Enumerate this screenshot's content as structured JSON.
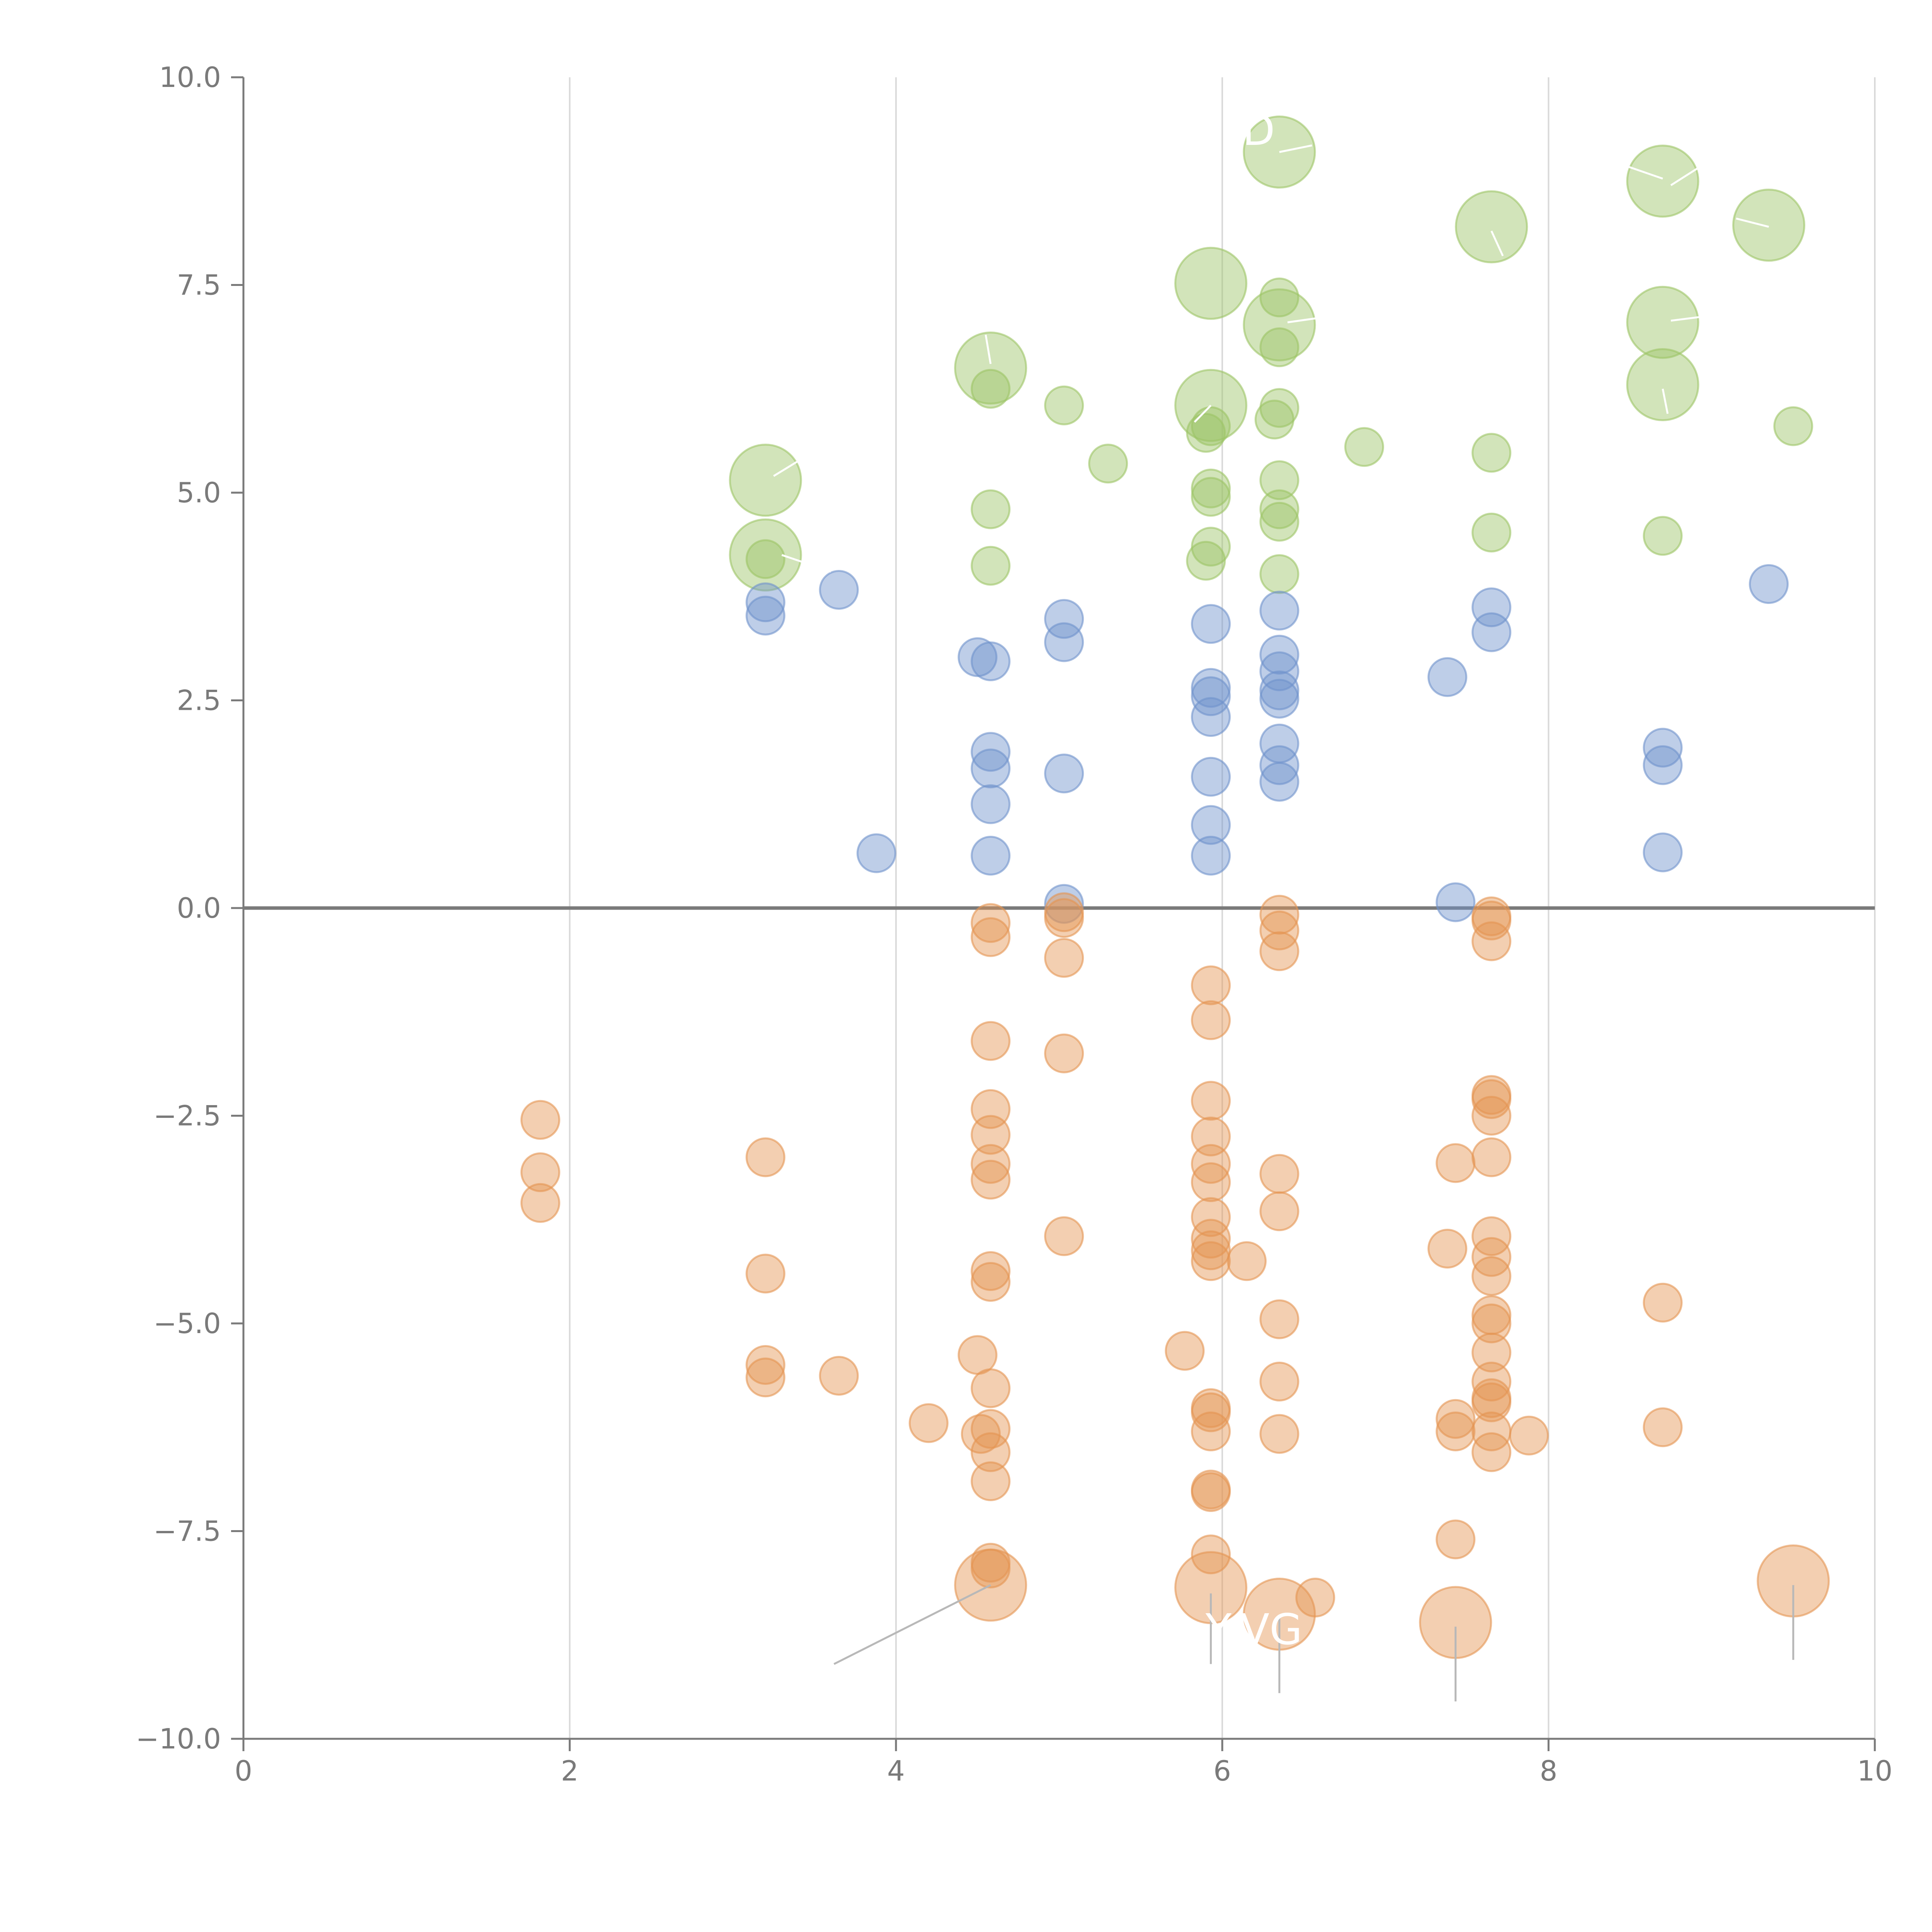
{
  "chart_data": {
    "type": "scatter",
    "title": "",
    "xlabel": "",
    "ylabel": "",
    "xlim": [
      0,
      10
    ],
    "ylim": [
      -10,
      10
    ],
    "x_ticks": [
      0,
      2,
      4,
      6,
      8,
      10
    ],
    "x_tick_labels": [
      "0",
      "2",
      "4",
      "6",
      "8",
      "10"
    ],
    "y_ticks": [
      10,
      7.5,
      5,
      2.5,
      0,
      -2.5,
      -5,
      -7.5,
      -10
    ],
    "y_tick_labels": [
      "10.0",
      "7.5",
      "5.0",
      "2.5",
      "0.0",
      "−2.5",
      "−5.0",
      "−7.5",
      "−10.0"
    ],
    "grid": "vertical",
    "zero_line": 0,
    "annotation_labels": [
      "D",
      "Y",
      "VG"
    ],
    "colors": {
      "green": "#9cc465",
      "blue": "#6f93cc",
      "orange": "#e59552",
      "axis": "#7a7a7a",
      "grid": "#d9d9d9"
    },
    "series": [
      {
        "name": "green",
        "color": "#9cc465",
        "points": [
          {
            "x": 3.2,
            "y": 5.15,
            "s": "large"
          },
          {
            "x": 3.2,
            "y": 4.25,
            "s": "large"
          },
          {
            "x": 3.2,
            "y": 4.2,
            "s": "small"
          },
          {
            "x": 4.58,
            "y": 6.5,
            "s": "large"
          },
          {
            "x": 4.58,
            "y": 6.25,
            "s": "small"
          },
          {
            "x": 4.58,
            "y": 4.8,
            "s": "small"
          },
          {
            "x": 4.58,
            "y": 4.12,
            "s": "small"
          },
          {
            "x": 5.03,
            "y": 6.05,
            "s": "small"
          },
          {
            "x": 5.3,
            "y": 5.35,
            "s": "small"
          },
          {
            "x": 5.93,
            "y": 7.52,
            "s": "large"
          },
          {
            "x": 5.93,
            "y": 6.05,
            "s": "large"
          },
          {
            "x": 5.93,
            "y": 5.8,
            "s": "small"
          },
          {
            "x": 5.9,
            "y": 5.72,
            "s": "small"
          },
          {
            "x": 5.93,
            "y": 5.05,
            "s": "small"
          },
          {
            "x": 5.93,
            "y": 4.95,
            "s": "small"
          },
          {
            "x": 5.93,
            "y": 4.35,
            "s": "small"
          },
          {
            "x": 5.9,
            "y": 4.18,
            "s": "small"
          },
          {
            "x": 6.35,
            "y": 9.1,
            "s": "large"
          },
          {
            "x": 6.35,
            "y": 7.35,
            "s": "small"
          },
          {
            "x": 6.35,
            "y": 7.02,
            "s": "large"
          },
          {
            "x": 6.35,
            "y": 6.75,
            "s": "small"
          },
          {
            "x": 6.35,
            "y": 6.02,
            "s": "small"
          },
          {
            "x": 6.32,
            "y": 5.88,
            "s": "small"
          },
          {
            "x": 6.35,
            "y": 5.15,
            "s": "small"
          },
          {
            "x": 6.35,
            "y": 4.8,
            "s": "small"
          },
          {
            "x": 6.35,
            "y": 4.65,
            "s": "small"
          },
          {
            "x": 6.35,
            "y": 4.02,
            "s": "small"
          },
          {
            "x": 6.87,
            "y": 5.55,
            "s": "small"
          },
          {
            "x": 7.65,
            "y": 8.2,
            "s": "large"
          },
          {
            "x": 7.65,
            "y": 5.48,
            "s": "small"
          },
          {
            "x": 7.65,
            "y": 4.52,
            "s": "small"
          },
          {
            "x": 8.7,
            "y": 8.75,
            "s": "large"
          },
          {
            "x": 8.7,
            "y": 7.05,
            "s": "large"
          },
          {
            "x": 8.7,
            "y": 6.3,
            "s": "large"
          },
          {
            "x": 8.7,
            "y": 4.48,
            "s": "small"
          },
          {
            "x": 9.35,
            "y": 8.22,
            "s": "large"
          },
          {
            "x": 9.5,
            "y": 5.8,
            "s": "small"
          }
        ]
      },
      {
        "name": "blue",
        "color": "#6f93cc",
        "points": [
          {
            "x": 3.2,
            "y": 3.68,
            "s": "small"
          },
          {
            "x": 3.2,
            "y": 3.52,
            "s": "small"
          },
          {
            "x": 3.65,
            "y": 3.83,
            "s": "small"
          },
          {
            "x": 3.88,
            "y": 0.66,
            "s": "small"
          },
          {
            "x": 4.5,
            "y": 3.02,
            "s": "small"
          },
          {
            "x": 4.58,
            "y": 2.97,
            "s": "small"
          },
          {
            "x": 4.58,
            "y": 1.88,
            "s": "small"
          },
          {
            "x": 4.58,
            "y": 1.68,
            "s": "small"
          },
          {
            "x": 4.58,
            "y": 1.25,
            "s": "small"
          },
          {
            "x": 4.58,
            "y": 0.63,
            "s": "small"
          },
          {
            "x": 5.03,
            "y": 3.48,
            "s": "small"
          },
          {
            "x": 5.03,
            "y": 3.2,
            "s": "small"
          },
          {
            "x": 5.03,
            "y": 1.62,
            "s": "small"
          },
          {
            "x": 5.03,
            "y": 0.05,
            "s": "small"
          },
          {
            "x": 5.93,
            "y": 3.42,
            "s": "small"
          },
          {
            "x": 5.93,
            "y": 2.65,
            "s": "small"
          },
          {
            "x": 5.93,
            "y": 2.55,
            "s": "small"
          },
          {
            "x": 5.93,
            "y": 2.3,
            "s": "small"
          },
          {
            "x": 5.93,
            "y": 1.58,
            "s": "small"
          },
          {
            "x": 5.93,
            "y": 1.0,
            "s": "small"
          },
          {
            "x": 5.93,
            "y": 0.63,
            "s": "small"
          },
          {
            "x": 6.35,
            "y": 3.58,
            "s": "small"
          },
          {
            "x": 6.35,
            "y": 3.05,
            "s": "small"
          },
          {
            "x": 6.35,
            "y": 2.85,
            "s": "small"
          },
          {
            "x": 6.35,
            "y": 2.62,
            "s": "small"
          },
          {
            "x": 6.35,
            "y": 2.52,
            "s": "small"
          },
          {
            "x": 6.35,
            "y": 1.98,
            "s": "small"
          },
          {
            "x": 6.35,
            "y": 1.72,
            "s": "small"
          },
          {
            "x": 6.35,
            "y": 1.52,
            "s": "small"
          },
          {
            "x": 7.38,
            "y": 2.78,
            "s": "small"
          },
          {
            "x": 7.43,
            "y": 0.07,
            "s": "small"
          },
          {
            "x": 7.65,
            "y": 3.62,
            "s": "small"
          },
          {
            "x": 7.65,
            "y": 3.32,
            "s": "small"
          },
          {
            "x": 8.7,
            "y": 1.93,
            "s": "small"
          },
          {
            "x": 8.7,
            "y": 1.72,
            "s": "small"
          },
          {
            "x": 8.7,
            "y": 0.67,
            "s": "small"
          },
          {
            "x": 9.35,
            "y": 3.9,
            "s": "small"
          }
        ]
      },
      {
        "name": "orange",
        "color": "#e59552",
        "points": [
          {
            "x": 1.82,
            "y": -2.55,
            "s": "small"
          },
          {
            "x": 1.82,
            "y": -3.18,
            "s": "small"
          },
          {
            "x": 1.82,
            "y": -3.55,
            "s": "small"
          },
          {
            "x": 3.2,
            "y": -3.0,
            "s": "small"
          },
          {
            "x": 3.2,
            "y": -4.4,
            "s": "small"
          },
          {
            "x": 3.2,
            "y": -5.5,
            "s": "small"
          },
          {
            "x": 3.2,
            "y": -5.65,
            "s": "small"
          },
          {
            "x": 3.65,
            "y": -5.63,
            "s": "small"
          },
          {
            "x": 4.2,
            "y": -6.2,
            "s": "small"
          },
          {
            "x": 4.58,
            "y": -0.18,
            "s": "small"
          },
          {
            "x": 4.58,
            "y": -0.35,
            "s": "small"
          },
          {
            "x": 4.58,
            "y": -1.6,
            "s": "small"
          },
          {
            "x": 4.58,
            "y": -2.42,
            "s": "small"
          },
          {
            "x": 4.58,
            "y": -2.73,
            "s": "small"
          },
          {
            "x": 4.58,
            "y": -3.08,
            "s": "small"
          },
          {
            "x": 4.58,
            "y": -3.27,
            "s": "small"
          },
          {
            "x": 4.58,
            "y": -4.37,
            "s": "small"
          },
          {
            "x": 4.58,
            "y": -4.5,
            "s": "small"
          },
          {
            "x": 4.5,
            "y": -5.38,
            "s": "small"
          },
          {
            "x": 4.58,
            "y": -5.78,
            "s": "small"
          },
          {
            "x": 4.58,
            "y": -6.27,
            "s": "small"
          },
          {
            "x": 4.52,
            "y": -6.33,
            "s": "small"
          },
          {
            "x": 4.58,
            "y": -6.55,
            "s": "small"
          },
          {
            "x": 4.58,
            "y": -6.9,
            "s": "small"
          },
          {
            "x": 4.58,
            "y": -7.88,
            "s": "small"
          },
          {
            "x": 4.58,
            "y": -7.95,
            "s": "small"
          },
          {
            "x": 4.58,
            "y": -8.15,
            "s": "large"
          },
          {
            "x": 5.03,
            "y": -0.05,
            "s": "small"
          },
          {
            "x": 5.03,
            "y": -0.12,
            "s": "small"
          },
          {
            "x": 5.03,
            "y": -0.6,
            "s": "small"
          },
          {
            "x": 5.03,
            "y": -1.75,
            "s": "small"
          },
          {
            "x": 5.03,
            "y": -3.95,
            "s": "small"
          },
          {
            "x": 5.77,
            "y": -5.33,
            "s": "small"
          },
          {
            "x": 5.93,
            "y": -0.93,
            "s": "small"
          },
          {
            "x": 5.93,
            "y": -1.35,
            "s": "small"
          },
          {
            "x": 5.93,
            "y": -2.32,
            "s": "small"
          },
          {
            "x": 5.93,
            "y": -2.75,
            "s": "small"
          },
          {
            "x": 5.93,
            "y": -3.08,
            "s": "small"
          },
          {
            "x": 5.93,
            "y": -3.3,
            "s": "small"
          },
          {
            "x": 5.93,
            "y": -3.72,
            "s": "small"
          },
          {
            "x": 5.93,
            "y": -3.98,
            "s": "small"
          },
          {
            "x": 5.93,
            "y": -4.12,
            "s": "small"
          },
          {
            "x": 5.93,
            "y": -4.25,
            "s": "small"
          },
          {
            "x": 5.93,
            "y": -6.02,
            "s": "small"
          },
          {
            "x": 5.93,
            "y": -6.07,
            "s": "small"
          },
          {
            "x": 5.93,
            "y": -6.3,
            "s": "small"
          },
          {
            "x": 5.93,
            "y": -7.0,
            "s": "small"
          },
          {
            "x": 5.93,
            "y": -7.03,
            "s": "small"
          },
          {
            "x": 5.93,
            "y": -7.78,
            "s": "small"
          },
          {
            "x": 5.93,
            "y": -8.18,
            "s": "large"
          },
          {
            "x": 6.15,
            "y": -4.25,
            "s": "small"
          },
          {
            "x": 6.35,
            "y": -0.08,
            "s": "small"
          },
          {
            "x": 6.35,
            "y": -0.27,
            "s": "small"
          },
          {
            "x": 6.35,
            "y": -0.52,
            "s": "small"
          },
          {
            "x": 6.35,
            "y": -3.2,
            "s": "small"
          },
          {
            "x": 6.35,
            "y": -3.65,
            "s": "small"
          },
          {
            "x": 6.35,
            "y": -4.95,
            "s": "small"
          },
          {
            "x": 6.35,
            "y": -5.7,
            "s": "small"
          },
          {
            "x": 6.35,
            "y": -6.33,
            "s": "small"
          },
          {
            "x": 6.35,
            "y": -8.5,
            "s": "large"
          },
          {
            "x": 6.57,
            "y": -8.3,
            "s": "small"
          },
          {
            "x": 7.38,
            "y": -4.1,
            "s": "small"
          },
          {
            "x": 7.43,
            "y": -3.07,
            "s": "small"
          },
          {
            "x": 7.43,
            "y": -6.15,
            "s": "small"
          },
          {
            "x": 7.43,
            "y": -6.3,
            "s": "small"
          },
          {
            "x": 7.43,
            "y": -7.6,
            "s": "small"
          },
          {
            "x": 7.43,
            "y": -8.6,
            "s": "large"
          },
          {
            "x": 7.65,
            "y": -0.1,
            "s": "small"
          },
          {
            "x": 7.65,
            "y": -0.15,
            "s": "small"
          },
          {
            "x": 7.65,
            "y": -0.4,
            "s": "small"
          },
          {
            "x": 7.65,
            "y": -2.25,
            "s": "small"
          },
          {
            "x": 7.65,
            "y": -2.3,
            "s": "small"
          },
          {
            "x": 7.65,
            "y": -2.5,
            "s": "small"
          },
          {
            "x": 7.65,
            "y": -3.0,
            "s": "small"
          },
          {
            "x": 7.65,
            "y": -3.95,
            "s": "small"
          },
          {
            "x": 7.65,
            "y": -4.2,
            "s": "small"
          },
          {
            "x": 7.65,
            "y": -4.43,
            "s": "small"
          },
          {
            "x": 7.65,
            "y": -4.9,
            "s": "small"
          },
          {
            "x": 7.65,
            "y": -5.0,
            "s": "small"
          },
          {
            "x": 7.65,
            "y": -5.35,
            "s": "small"
          },
          {
            "x": 7.65,
            "y": -5.7,
            "s": "small"
          },
          {
            "x": 7.65,
            "y": -5.9,
            "s": "small"
          },
          {
            "x": 7.65,
            "y": -5.95,
            "s": "small"
          },
          {
            "x": 7.65,
            "y": -6.3,
            "s": "small"
          },
          {
            "x": 7.65,
            "y": -6.55,
            "s": "small"
          },
          {
            "x": 7.88,
            "y": -6.35,
            "s": "small"
          },
          {
            "x": 8.7,
            "y": -4.75,
            "s": "small"
          },
          {
            "x": 8.7,
            "y": -6.25,
            "s": "small"
          },
          {
            "x": 9.5,
            "y": -8.1,
            "s": "large"
          }
        ]
      }
    ],
    "leader_lines": [
      {
        "from": [
          3.25,
          5.2
        ],
        "to": [
          3.4,
          5.38
        ],
        "color": "#ffffff"
      },
      {
        "from": [
          3.3,
          4.25
        ],
        "to": [
          3.6,
          4.05
        ],
        "color": "#ffffff"
      },
      {
        "from": [
          4.58,
          6.55
        ],
        "to": [
          4.55,
          6.9
        ],
        "color": "#ffffff"
      },
      {
        "from": [
          5.93,
          6.05
        ],
        "to": [
          5.83,
          5.85
        ],
        "color": "#ffffff"
      },
      {
        "from": [
          6.35,
          9.1
        ],
        "to": [
          6.55,
          9.18
        ],
        "color": "#ffffff"
      },
      {
        "from": [
          6.4,
          7.05
        ],
        "to": [
          6.65,
          7.12
        ],
        "color": "#ffffff"
      },
      {
        "from": [
          7.65,
          8.15
        ],
        "to": [
          7.72,
          7.85
        ],
        "color": "#ffffff"
      },
      {
        "from": [
          8.7,
          8.78
        ],
        "to": [
          8.45,
          8.95
        ],
        "color": "#ffffff"
      },
      {
        "from": [
          8.75,
          8.7
        ],
        "to": [
          8.95,
          8.95
        ],
        "color": "#ffffff"
      },
      {
        "from": [
          8.75,
          7.07
        ],
        "to": [
          8.95,
          7.12
        ],
        "color": "#ffffff"
      },
      {
        "from": [
          8.7,
          6.25
        ],
        "to": [
          8.73,
          5.95
        ],
        "color": "#ffffff"
      },
      {
        "from": [
          9.35,
          8.2
        ],
        "to": [
          9.15,
          8.3
        ],
        "color": "#ffffff"
      },
      {
        "from": [
          4.58,
          -8.15
        ],
        "to": [
          3.62,
          -9.1
        ],
        "color": "#b8b8b8"
      },
      {
        "from": [
          5.93,
          -8.25
        ],
        "to": [
          5.93,
          -9.1
        ],
        "color": "#b8b8b8"
      },
      {
        "from": [
          6.35,
          -8.55
        ],
        "to": [
          6.35,
          -9.45
        ],
        "color": "#b8b8b8"
      },
      {
        "from": [
          7.43,
          -8.65
        ],
        "to": [
          7.43,
          -9.55
        ],
        "color": "#b8b8b8"
      },
      {
        "from": [
          9.5,
          -8.15
        ],
        "to": [
          9.5,
          -9.05
        ],
        "color": "#b8b8b8"
      }
    ]
  }
}
